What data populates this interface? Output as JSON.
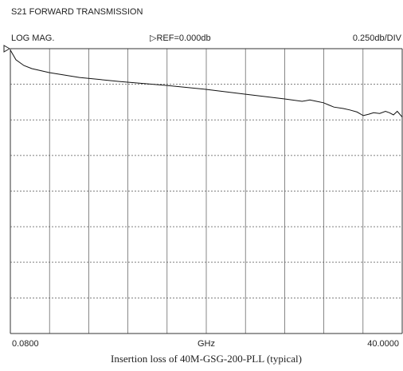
{
  "chart_data": {
    "type": "line",
    "title": "S21 FORWARD TRANSMISSION",
    "format_label": "LOG MAG.",
    "ref_label": "▷REF=0.000db",
    "scale_label": "0.250db/DIV",
    "x_label": "GHz",
    "caption": "Insertion loss of 40M-GSG-200-PLL (typical)",
    "xlim": [
      0.08,
      40
    ],
    "xticks": [
      {
        "value": 0.08,
        "label": "0.0800"
      },
      {
        "value": 40,
        "label": "40.0000"
      }
    ],
    "ylim": [
      -2,
      0
    ],
    "x_divisions": 10,
    "y_divisions": 8,
    "grid": true,
    "series": [
      {
        "name": "S21",
        "color": "#111",
        "x": [
          0.08,
          0.65,
          1.46,
          2.27,
          4.05,
          7.12,
          11.17,
          16.03,
          20.08,
          24.05,
          28.02,
          29.8,
          30.6,
          31.98,
          32.5,
          33.04,
          34.0,
          34.66,
          35.4,
          36.03,
          36.6,
          37.09,
          37.7,
          38.3,
          38.7,
          39.11,
          39.5,
          40.0
        ],
        "values": [
          -0.01,
          -0.078,
          -0.118,
          -0.14,
          -0.168,
          -0.202,
          -0.23,
          -0.258,
          -0.286,
          -0.32,
          -0.353,
          -0.37,
          -0.36,
          -0.38,
          -0.395,
          -0.41,
          -0.42,
          -0.43,
          -0.445,
          -0.47,
          -0.46,
          -0.45,
          -0.455,
          -0.44,
          -0.45,
          -0.465,
          -0.44,
          -0.48
        ]
      }
    ]
  }
}
